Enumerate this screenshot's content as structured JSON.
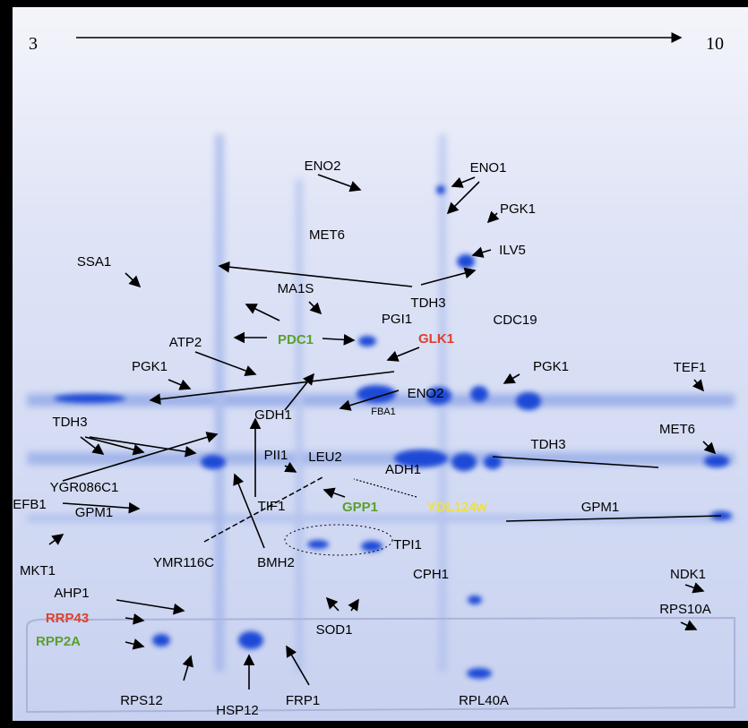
{
  "axis": {
    "start": "3",
    "end": "10"
  },
  "labels": [
    {
      "text": "ENO2"
    },
    {
      "text": "ENO1"
    },
    {
      "text": "PGK1"
    },
    {
      "text": "MET6"
    },
    {
      "text": "ILV5"
    },
    {
      "text": "SSA1"
    },
    {
      "text": "MA1S"
    },
    {
      "text": "TDH3"
    },
    {
      "text": "PGI1"
    },
    {
      "text": "CDC19"
    },
    {
      "text": "PDC1",
      "color": "#5aa02c"
    },
    {
      "text": "GLK1",
      "color": "#e0402a"
    },
    {
      "text": "ATP2"
    },
    {
      "text": "PGK1"
    },
    {
      "text": "PGK1"
    },
    {
      "text": "TEF1"
    },
    {
      "text": "ENO2"
    },
    {
      "text": "FBA1"
    },
    {
      "text": "TDH3"
    },
    {
      "text": "GDH1"
    },
    {
      "text": "TDH3"
    },
    {
      "text": "MET6"
    },
    {
      "text": "PII1"
    },
    {
      "text": "LEU2"
    },
    {
      "text": "ADH1"
    },
    {
      "text": "YGR086C1"
    },
    {
      "text": "GPP1",
      "color": "#5aa02c"
    },
    {
      "text": "YDL124w",
      "color": "#f0e040"
    },
    {
      "text": "EFB1"
    },
    {
      "text": "GPM1"
    },
    {
      "text": "GPM1"
    },
    {
      "text": "TIF1"
    },
    {
      "text": "TPI1"
    },
    {
      "text": "MKT1"
    },
    {
      "text": "YMR116C"
    },
    {
      "text": "BMH2"
    },
    {
      "text": "CPH1"
    },
    {
      "text": "NDK1"
    },
    {
      "text": "AHP1"
    },
    {
      "text": "RRP43",
      "color": "#e0402a"
    },
    {
      "text": "RPS10A"
    },
    {
      "text": "SOD1"
    },
    {
      "text": "RPP2A",
      "color": "#5aa02c"
    },
    {
      "text": "RPS12"
    },
    {
      "text": "HSP12"
    },
    {
      "text": "FRP1"
    },
    {
      "text": "RPL40A"
    }
  ]
}
